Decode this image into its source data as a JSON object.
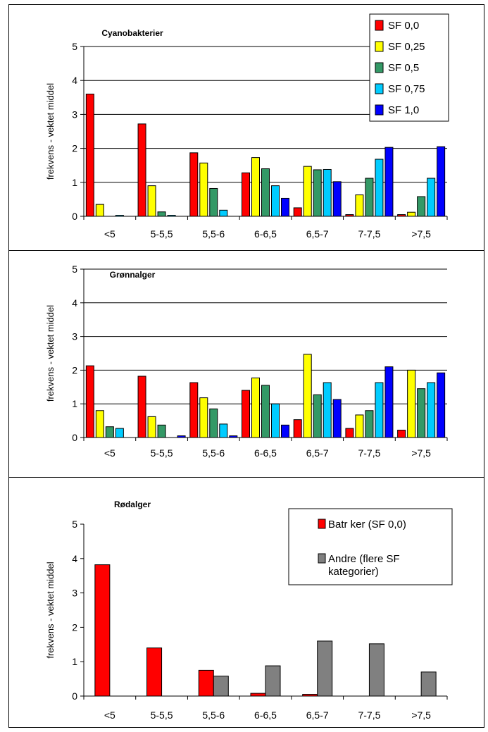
{
  "colors": {
    "SF 0,0": "#ff0000",
    "SF 0,25": "#ffff00",
    "SF 0,5": "#339966",
    "SF 0,75": "#00ccff",
    "SF 1,0": "#0000ff",
    "grey": "#808080"
  },
  "chart_data": [
    {
      "type": "bar",
      "title": "Cyanobakterier",
      "ylabel": "frekvens - vektet middel",
      "ylim": [
        0,
        5
      ],
      "yticks": [
        "0",
        "1",
        "2",
        "3",
        "4",
        "5"
      ],
      "grid": true,
      "legend": "top-right",
      "categories": [
        "<5",
        "5-5,5",
        "5,5-6",
        "6-6,5",
        "6,5-7",
        "7-7,5",
        ">7,5"
      ],
      "series": [
        {
          "name": "SF 0,0",
          "color": "#ff0000",
          "values": [
            3.6,
            2.72,
            1.87,
            1.28,
            0.25,
            0.05,
            0.05
          ]
        },
        {
          "name": "SF 0,25",
          "color": "#ffff00",
          "values": [
            0.35,
            0.9,
            1.57,
            1.73,
            1.47,
            0.63,
            0.12
          ]
        },
        {
          "name": "SF 0,5",
          "color": "#339966",
          "values": [
            0.0,
            0.13,
            0.82,
            1.4,
            1.37,
            1.12,
            0.58
          ]
        },
        {
          "name": "SF 0,75",
          "color": "#00ccff",
          "values": [
            0.03,
            0.03,
            0.18,
            0.9,
            1.38,
            1.68,
            1.12
          ]
        },
        {
          "name": "SF 1,0",
          "color": "#0000ff",
          "values": [
            0.0,
            0.0,
            0.0,
            0.53,
            1.02,
            2.03,
            2.05
          ]
        }
      ]
    },
    {
      "type": "bar",
      "title": "Grønnalger",
      "ylabel": "frekvens - vektet middel",
      "ylim": [
        0,
        5
      ],
      "yticks": [
        "0",
        "1",
        "2",
        "3",
        "4",
        "5"
      ],
      "grid": true,
      "categories": [
        "<5",
        "5-5,5",
        "5,5-6",
        "6-6,5",
        "6,5-7",
        "7-7,5",
        ">7,5"
      ],
      "series": [
        {
          "name": "SF 0,0",
          "color": "#ff0000",
          "values": [
            2.13,
            1.82,
            1.63,
            1.4,
            0.53,
            0.27,
            0.22
          ]
        },
        {
          "name": "SF 0,25",
          "color": "#ffff00",
          "values": [
            0.8,
            0.62,
            1.18,
            1.77,
            2.47,
            0.67,
            2.0
          ]
        },
        {
          "name": "SF 0,5",
          "color": "#339966",
          "values": [
            0.32,
            0.37,
            0.85,
            1.55,
            1.27,
            0.8,
            1.45
          ]
        },
        {
          "name": "SF 0,75",
          "color": "#00ccff",
          "values": [
            0.27,
            0.0,
            0.4,
            1.0,
            1.63,
            1.63,
            1.63
          ]
        },
        {
          "name": "SF 1,0",
          "color": "#0000ff",
          "values": [
            0.0,
            0.05,
            0.05,
            0.37,
            1.13,
            2.1,
            1.92
          ]
        }
      ]
    },
    {
      "type": "bar",
      "title": "Rødalger",
      "ylabel": "frekvens - vektet middel",
      "ylim": [
        0,
        5
      ],
      "yticks": [
        "0",
        "1",
        "2",
        "3",
        "4",
        "5"
      ],
      "grid": false,
      "legend": "top-right",
      "categories": [
        "<5",
        "5-5,5",
        "5,5-6",
        "6-6,5",
        "6,5-7",
        "7-7,5",
        ">7,5"
      ],
      "series": [
        {
          "name": "Batr ker (SF 0,0)",
          "color": "#ff0000",
          "values": [
            3.82,
            1.4,
            0.75,
            0.08,
            0.05,
            0.0,
            0.0
          ]
        },
        {
          "name": "Andre (flere SF kategorier)",
          "color": "#808080",
          "values": [
            0.0,
            0.0,
            0.58,
            0.88,
            1.6,
            1.52,
            0.7
          ]
        }
      ]
    }
  ]
}
